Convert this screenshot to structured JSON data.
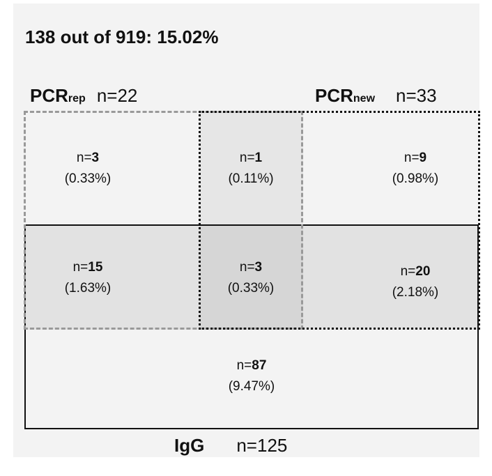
{
  "title": "138 out of 919: 15.02%",
  "sets": {
    "pcr_rep": {
      "name": "PCR",
      "sub": "rep",
      "count": "n=22"
    },
    "pcr_new": {
      "name": "PCR",
      "sub": "new",
      "count": "n=33"
    },
    "igg": {
      "name": "IgG",
      "count": "n=125"
    }
  },
  "regions": {
    "rep_only": {
      "prefix": "n=",
      "n": "3",
      "pct": "(0.33%)"
    },
    "rep_new": {
      "prefix": "n=",
      "n": "1",
      "pct": "(0.11%)"
    },
    "new_only": {
      "prefix": "n=",
      "n": "9",
      "pct": "(0.98%)"
    },
    "rep_igg": {
      "prefix": "n=",
      "n": "15",
      "pct": "(1.63%)"
    },
    "all_three": {
      "prefix": "n=",
      "n": "3",
      "pct": "(0.33%)"
    },
    "new_igg": {
      "prefix": "n=",
      "n": "20",
      "pct": "(2.18%)"
    },
    "igg_only": {
      "prefix": "n=",
      "n": "87",
      "pct": "(9.47%)"
    }
  },
  "colors": {
    "background": "#f3f3f3",
    "rep_border": "#999999",
    "new_border": "#111111",
    "igg_border": "#111111",
    "shade_light": "#e6e6e6",
    "shade_medium": "#e2e2e2",
    "shade_dark": "#d6d6d6"
  }
}
